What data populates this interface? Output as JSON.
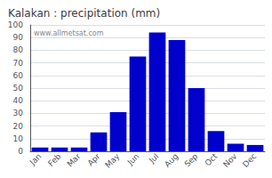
{
  "chart_data": {
    "type": "bar",
    "title": "Kalakan : precipitation (mm)",
    "categories": [
      "Jan",
      "Feb",
      "Mar",
      "Apr",
      "May",
      "Jun",
      "Jul",
      "Aug",
      "Sep",
      "Oct",
      "Nov",
      "Dec"
    ],
    "values": [
      3,
      3,
      3,
      15,
      31,
      75,
      94,
      88,
      50,
      16,
      6,
      5
    ],
    "color": "#0000CC",
    "ylim": [
      0,
      100
    ],
    "yticks": [
      0,
      10,
      20,
      30,
      40,
      50,
      60,
      70,
      80,
      90,
      100
    ],
    "grid": true,
    "annotations": [
      "www.allmetsat.com"
    ]
  }
}
